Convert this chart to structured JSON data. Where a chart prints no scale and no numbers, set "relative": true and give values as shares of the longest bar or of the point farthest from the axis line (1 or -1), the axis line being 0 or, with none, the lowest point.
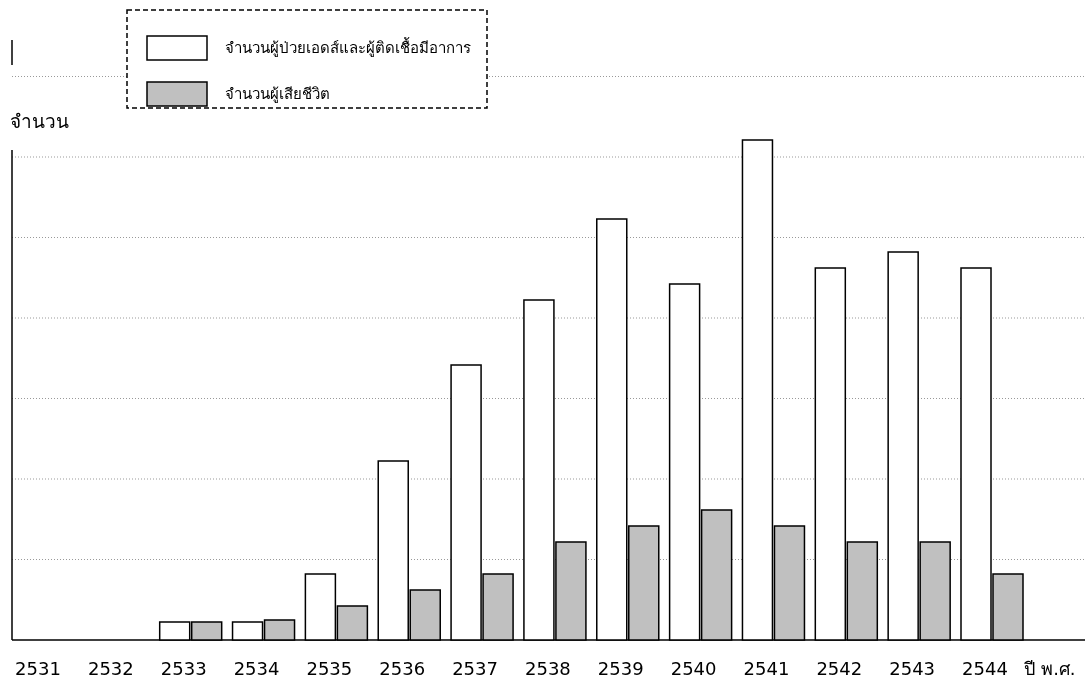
{
  "chart_data": {
    "type": "bar",
    "ylabel": "จำนวน",
    "xlabel": "ปี พ.ศ.",
    "relative": true,
    "grid": "y",
    "legend": "top",
    "categories": [
      "2531",
      "2532",
      "2533",
      "2534",
      "2535",
      "2536",
      "2537",
      "2538",
      "2539",
      "2540",
      "2541",
      "2542",
      "2543",
      "2544"
    ],
    "series": [
      {
        "name": "จำนวนผู้ป่วยเอดส์และผู้ติดเชื้อมีอาการ",
        "color": "#ffffff",
        "values": [
          null,
          null,
          0.036,
          0.036,
          0.132,
          0.358,
          0.55,
          0.68,
          0.842,
          0.712,
          1,
          0.744,
          0.776,
          0.744
        ]
      },
      {
        "name": "จำนวนผู้เสียชีวิต",
        "color": "#c0c0c0",
        "values": [
          null,
          null,
          0.036,
          0.04,
          0.068,
          0.1,
          0.132,
          0.196,
          0.228,
          0.26,
          0.228,
          0.196,
          0.196,
          0.132
        ]
      }
    ]
  }
}
